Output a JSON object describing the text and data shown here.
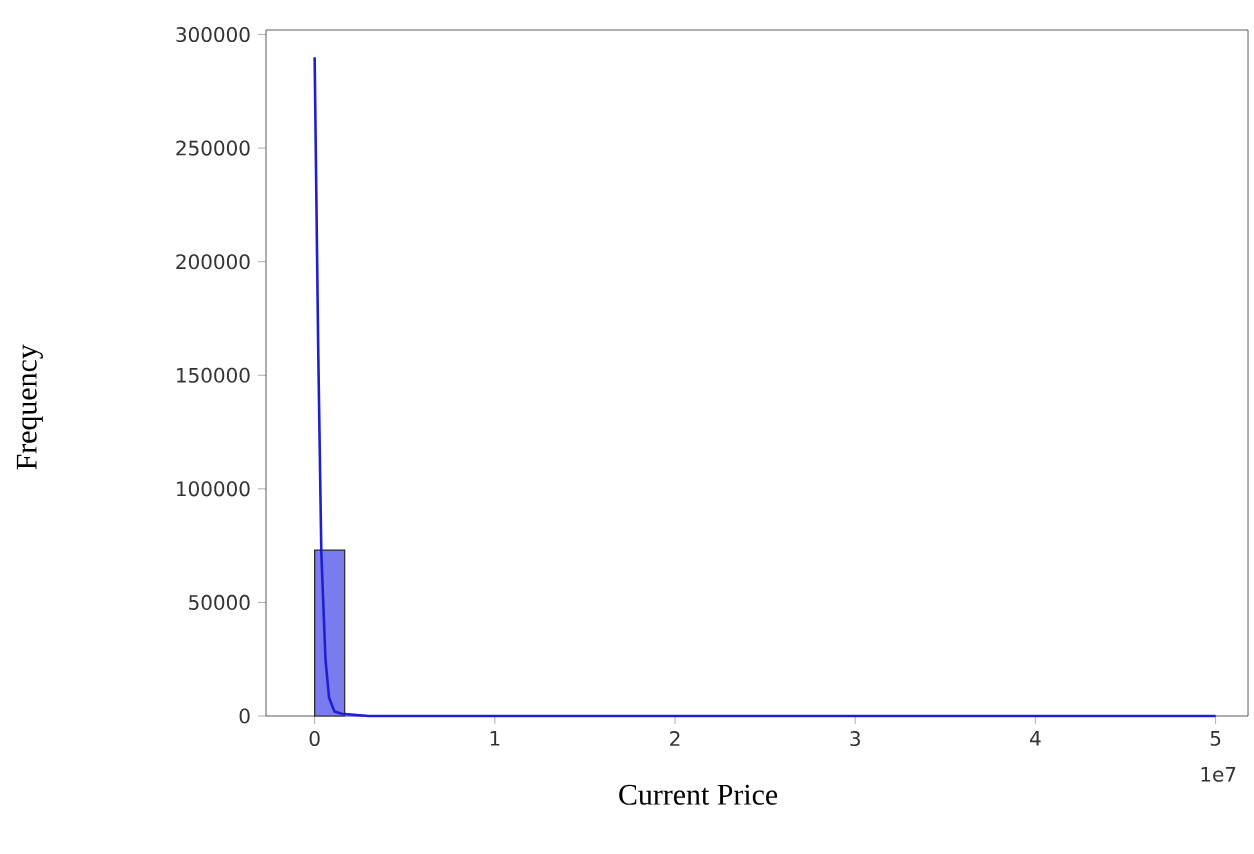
{
  "chart_data": {
    "type": "histogram",
    "xlabel": "Current Price",
    "ylabel": "Frequency",
    "bins": [
      0,
      0.1667,
      0.3333,
      0.5,
      0.6667,
      0.8333,
      1,
      1.1667,
      1.3333,
      1.5,
      1.6667,
      1.8333,
      2,
      2.1667,
      2.3333,
      2.5,
      2.6667,
      2.8333,
      3,
      3.1667,
      3.3333,
      3.5,
      3.6667,
      3.8333,
      4,
      4.1667,
      4.3333,
      4.5,
      4.6667,
      4.8333,
      5
    ],
    "values": [
      73000,
      0,
      0,
      0,
      0,
      0,
      0,
      0,
      0,
      0,
      0,
      0,
      0,
      0,
      0,
      0,
      0,
      0,
      0,
      0,
      0,
      0,
      0,
      0,
      0,
      0,
      0,
      0,
      0,
      0
    ],
    "color": "#7b7bf0",
    "series": [
      {
        "type": "line",
        "color": "#1f1fcf",
        "x": [
          0,
          0.02,
          0.037,
          0.06,
          0.08,
          0.11,
          0.15,
          0.3,
          1,
          3,
          5
        ],
        "values": [
          290000,
          160000,
          72000,
          25000,
          8000,
          2000,
          1000,
          0,
          0,
          0,
          0
        ]
      }
    ],
    "xlim": [
      -0.27,
      5.18
    ],
    "ylim": [
      0,
      302000
    ],
    "xticks": [
      0,
      1,
      2,
      3,
      4,
      5
    ],
    "yticks": [
      0,
      50000,
      100000,
      150000,
      200000,
      250000,
      300000
    ],
    "annotations": [
      "1e7"
    ]
  }
}
